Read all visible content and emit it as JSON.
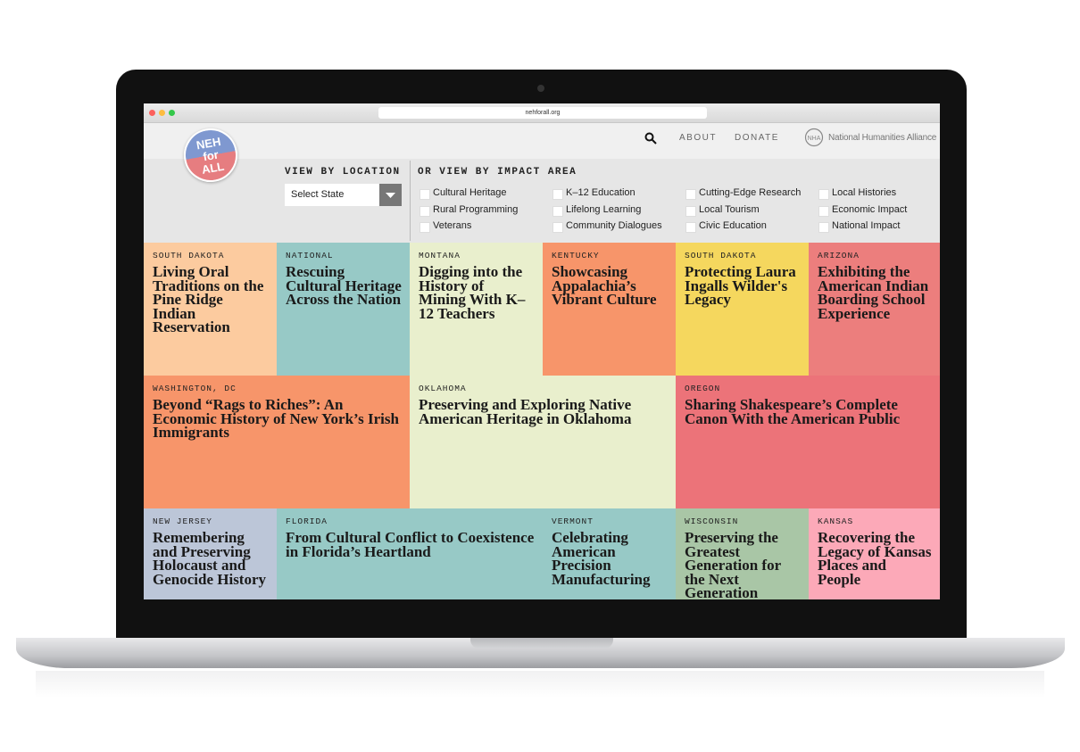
{
  "browser": {
    "url": "nehforall.org"
  },
  "logo": {
    "lines": [
      "NEH",
      "for",
      "ALL"
    ]
  },
  "nav": {
    "links": [
      "ABOUT",
      "DONATE"
    ],
    "partner": "National Humanities Alliance"
  },
  "filters": {
    "location_heading": "VIEW BY LOCATION",
    "select_placeholder": "Select State",
    "impact_heading": "OR VIEW BY IMPACT AREA",
    "impact_areas": [
      "Cultural Heritage",
      "K–12 Education",
      "Cutting-Edge Research",
      "Local Histories",
      "Rural Programming",
      "Lifelong Learning",
      "Local Tourism",
      "Economic Impact",
      "Veterans",
      "Community Dialogues",
      "Civic Education",
      "National Impact"
    ]
  },
  "tiles": [
    {
      "location": "SOUTH DAKOTA",
      "title": "Living Oral Traditions on the Pine Ridge Indian Reservation",
      "color": "#fccb9f"
    },
    {
      "location": "NATIONAL",
      "title": "Rescuing Cultural Heritage Across the Nation",
      "color": "#97c9c6"
    },
    {
      "location": "MONTANA",
      "title": "Digging into the History of Mining With K–12 Teachers",
      "color": "#e9efcd"
    },
    {
      "location": "KENTUCKY",
      "title": "Showcasing Appalachia’s Vibrant Culture",
      "color": "#f7956a"
    },
    {
      "location": "SOUTH DAKOTA",
      "title": "Protecting Laura Ingalls Wilder's Legacy",
      "color": "#f5d75e"
    },
    {
      "location": "ARIZONA",
      "title": "Exhibiting the American Indian Boarding School Experience",
      "color": "#ec7e7d"
    },
    {
      "location": "WASHINGTON, DC",
      "title": "Beyond “Rags to Riches”: An Economic History of New York’s Irish Immigrants",
      "color": "#f7956a"
    },
    {
      "location": "OKLAHOMA",
      "title": "Preserving and Exploring Native American Heritage in Oklahoma",
      "color": "#e9efcd"
    },
    {
      "location": "OREGON",
      "title": "Sharing Shakespeare’s Complete Canon With the American Public",
      "color": "#ec7379"
    },
    {
      "location": "NEW JERSEY",
      "title": "Remembering and Preserving Holocaust and Genocide History",
      "color": "#bcc6d8"
    },
    {
      "location": "FLORIDA",
      "title": "From Cultural Conflict to Coexistence in Florida’s Heartland",
      "color": "#97c9c6"
    },
    {
      "location": "VERMONT",
      "title": "Celebrating American Precision Manufacturing",
      "color": "#97c9c6"
    },
    {
      "location": "WISCONSIN",
      "title": "Preserving the Greatest Generation for the Next Generation",
      "color": "#a9c6a6"
    },
    {
      "location": "KANSAS",
      "title": "Recovering the Legacy of Kansas Places and People",
      "color": "#fca9b8"
    }
  ]
}
